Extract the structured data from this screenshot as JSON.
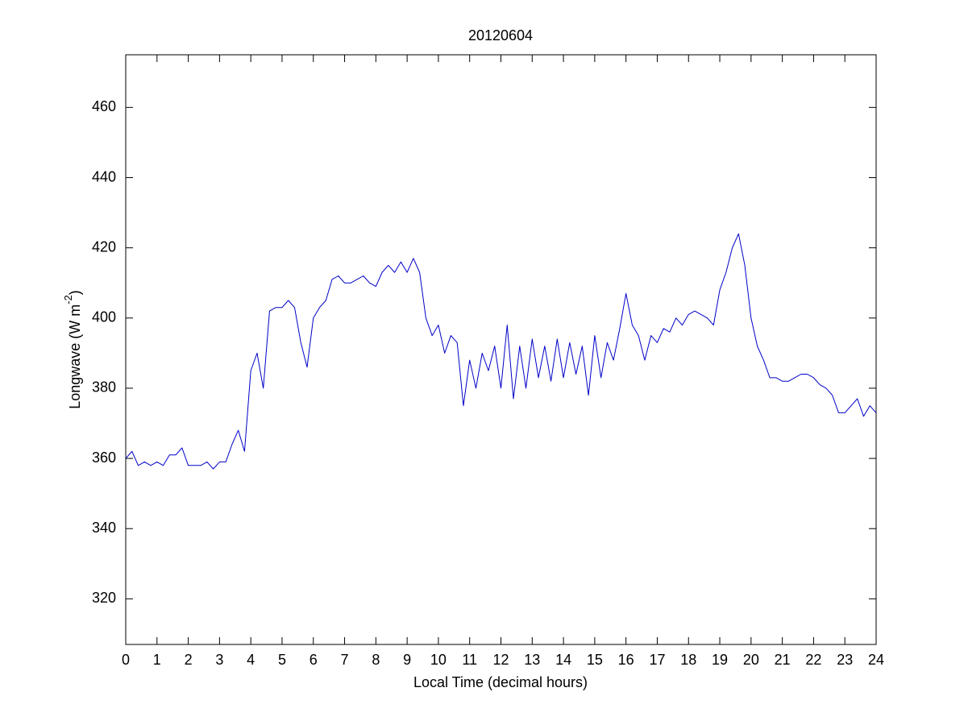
{
  "chart_data": {
    "type": "line",
    "title": "20120604",
    "x_label": "Local Time (decimal hours)",
    "y_label": {
      "text": "Longwave (W m",
      "superscript": "-2",
      "suffix": ")"
    },
    "color": "#0000c8",
    "xlim": [
      0,
      24
    ],
    "xticks": [
      0,
      1,
      2,
      3,
      4,
      5,
      6,
      7,
      8,
      9,
      10,
      11,
      12,
      13,
      14,
      15,
      16,
      17,
      18,
      19,
      20,
      21,
      22,
      23,
      24
    ],
    "ylim": [
      307,
      475
    ],
    "yticks": [
      320,
      340,
      360,
      380,
      400,
      420,
      440,
      460
    ],
    "grid": false,
    "x": [
      0,
      0.2,
      0.4,
      0.6,
      0.8,
      1,
      1.2,
      1.4,
      1.6,
      1.8,
      2,
      2.2,
      2.4,
      2.6,
      2.8,
      3,
      3.2,
      3.4,
      3.6,
      3.8,
      4,
      4.2,
      4.4,
      4.6,
      4.8,
      5,
      5.2,
      5.4,
      5.6,
      5.8,
      6,
      6.2,
      6.4,
      6.6,
      6.8,
      7,
      7.2,
      7.4,
      7.6,
      7.8,
      8,
      8.2,
      8.4,
      8.6,
      8.8,
      9,
      9.2,
      9.4,
      9.6,
      9.8,
      10,
      10.2,
      10.4,
      10.6,
      10.8,
      11,
      11.2,
      11.4,
      11.6,
      11.8,
      12,
      12.2,
      12.4,
      12.6,
      12.8,
      13,
      13.2,
      13.4,
      13.6,
      13.8,
      14,
      14.2,
      14.4,
      14.6,
      14.8,
      15,
      15.2,
      15.4,
      15.6,
      15.8,
      16,
      16.2,
      16.4,
      16.6,
      16.8,
      17,
      17.2,
      17.4,
      17.6,
      17.8,
      18,
      18.2,
      18.4,
      18.6,
      18.8,
      19,
      19.2,
      19.4,
      19.6,
      19.8,
      20,
      20.2,
      20.4,
      20.6,
      20.8,
      21,
      21.2,
      21.4,
      21.6,
      21.8,
      22,
      22.2,
      22.4,
      22.6,
      22.8,
      23,
      23.2,
      23.4,
      23.6,
      23.8,
      24
    ],
    "values": [
      360,
      362,
      358,
      359,
      358,
      359,
      358,
      361,
      361,
      363,
      358,
      358,
      358,
      359,
      357,
      359,
      359,
      364,
      368,
      362,
      385,
      390,
      380,
      402,
      403,
      403,
      405,
      403,
      393,
      386,
      400,
      403,
      405,
      411,
      412,
      410,
      410,
      411,
      412,
      410,
      409,
      413,
      415,
      413,
      416,
      413,
      417,
      413,
      400,
      395,
      398,
      390,
      395,
      393,
      375,
      388,
      380,
      390,
      385,
      392,
      380,
      398,
      377,
      392,
      380,
      394,
      383,
      392,
      382,
      394,
      383,
      393,
      384,
      392,
      378,
      395,
      383,
      393,
      388,
      397,
      407,
      398,
      395,
      388,
      395,
      393,
      397,
      396,
      400,
      398,
      401,
      402,
      401,
      400,
      398,
      408,
      413,
      420,
      424,
      415,
      400,
      392,
      388,
      383,
      383,
      382,
      382,
      383,
      384,
      384,
      383,
      381,
      380,
      378,
      373,
      373,
      375,
      377,
      372,
      375,
      373
    ]
  }
}
